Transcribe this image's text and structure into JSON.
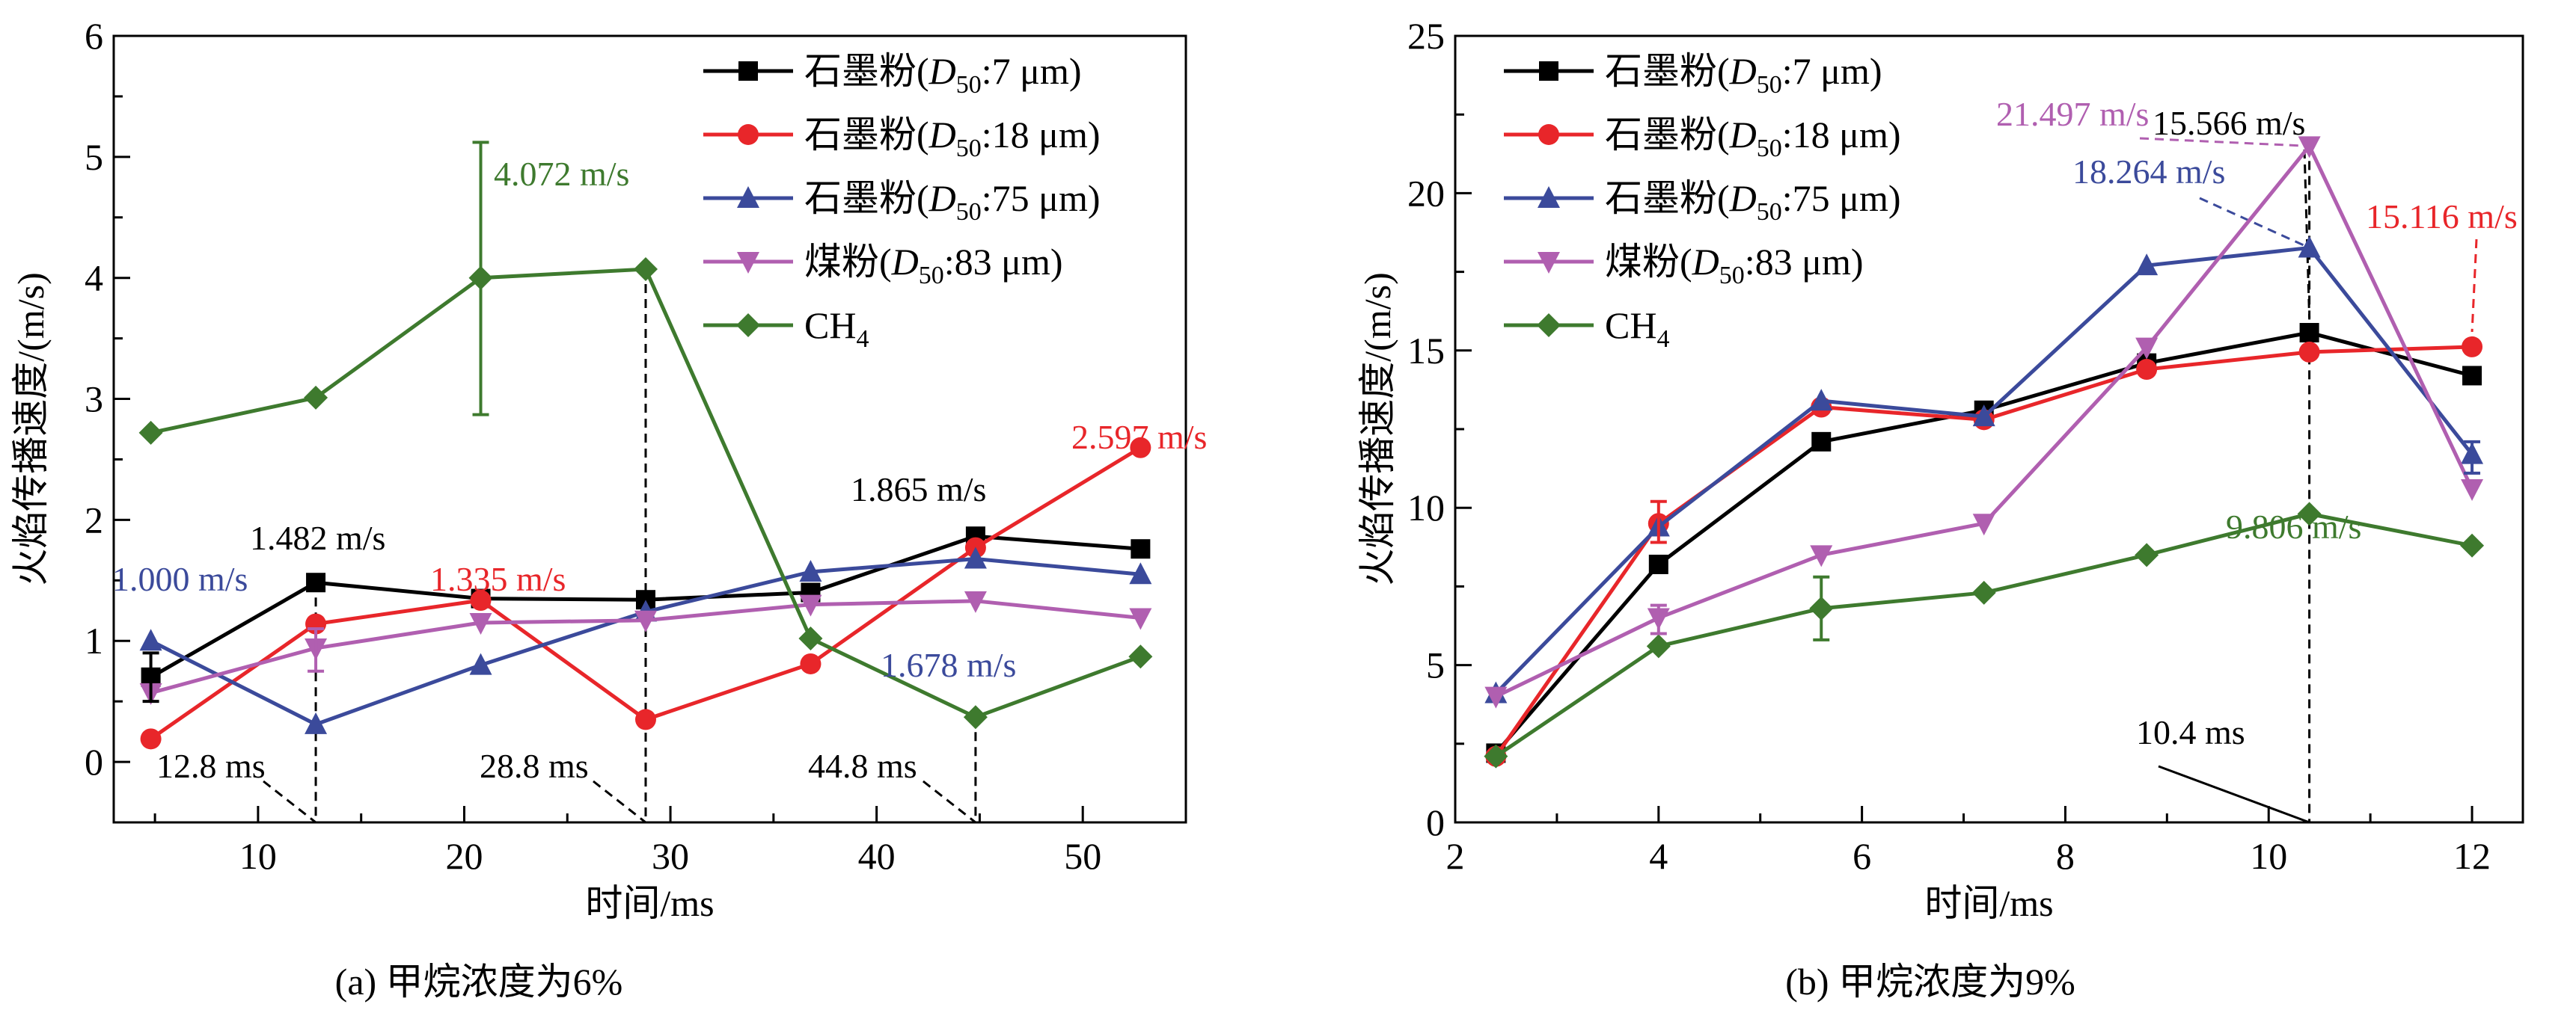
{
  "chart_data": [
    {
      "type": "line",
      "caption": "(a) 甲烷浓度为6%",
      "xlabel": "时间/ms",
      "ylabel": "火焰传播速度/(m/s)",
      "xlim": [
        3,
        55
      ],
      "ylim": [
        -0.5,
        6
      ],
      "xticks": [
        10,
        20,
        30,
        40,
        50
      ],
      "yticks": [
        0,
        1,
        2,
        3,
        4,
        5,
        6
      ],
      "grid": false,
      "legend_position": "top-right",
      "x": [
        4.8,
        12.8,
        20.8,
        28.8,
        36.8,
        44.8,
        52.8
      ],
      "series": [
        {
          "name": "石墨粉(D50:7 μm)",
          "color": "#000000",
          "marker": "square",
          "values": [
            0.7,
            1.482,
            1.35,
            1.34,
            1.4,
            1.865,
            1.76
          ]
        },
        {
          "name": "石墨粉(D50:18 μm)",
          "color": "#e8262a",
          "marker": "circle",
          "values": [
            0.19,
            1.14,
            1.335,
            0.35,
            0.81,
            1.77,
            2.597
          ]
        },
        {
          "name": "石墨粉(D50:75 μm)",
          "color": "#3b4a9b",
          "marker": "triangle-up",
          "values": [
            1.0,
            0.31,
            0.8,
            1.24,
            1.57,
            1.678,
            1.55
          ]
        },
        {
          "name": "煤粉(D50:83 μm)",
          "color": "#b05fb0",
          "marker": "triangle-down",
          "values": [
            0.57,
            0.94,
            1.15,
            1.17,
            1.3,
            1.33,
            1.19
          ]
        },
        {
          "name": "CH4",
          "color": "#3e7a2e",
          "marker": "diamond",
          "values": [
            2.72,
            3.01,
            4.0,
            4.072,
            1.02,
            0.37,
            0.87
          ]
        }
      ],
      "error_bars": [
        {
          "series": 4,
          "x": 20.8,
          "low": 2.87,
          "high": 5.12
        },
        {
          "series": 0,
          "x": 4.8,
          "low": 0.5,
          "high": 0.9
        },
        {
          "series": 3,
          "x": 12.8,
          "low": 0.75,
          "high": 1.1
        }
      ],
      "annotations": [
        {
          "text": "4.072 m/s",
          "color": "#3e7a2e"
        },
        {
          "text": "2.597 m/s",
          "color": "#e8262a"
        },
        {
          "text": "1.865 m/s",
          "color": "#000000"
        },
        {
          "text": "1.482 m/s",
          "color": "#000000"
        },
        {
          "text": "1.000 m/s",
          "color": "#3b4a9b"
        },
        {
          "text": "1.335 m/s",
          "color": "#e8262a"
        },
        {
          "text": "1.678 m/s",
          "color": "#3b4a9b"
        },
        {
          "text": "12.8 ms",
          "color": "#000000"
        },
        {
          "text": "28.8 ms",
          "color": "#000000"
        },
        {
          "text": "44.8 ms",
          "color": "#000000"
        }
      ]
    },
    {
      "type": "line",
      "caption": "(b) 甲烷浓度为9%",
      "xlabel": "时间/ms",
      "ylabel": "火焰传播速度/(m/s)",
      "xlim": [
        2,
        12.5
      ],
      "ylim": [
        0,
        25
      ],
      "xticks": [
        2,
        4,
        6,
        8,
        10,
        12
      ],
      "yticks": [
        0,
        5,
        10,
        15,
        20,
        25
      ],
      "grid": false,
      "legend_position": "top-left",
      "x": [
        2.4,
        4.0,
        5.6,
        7.2,
        8.8,
        10.4,
        12.0
      ],
      "series": [
        {
          "name": "石墨粉(D50:7 μm)",
          "color": "#000000",
          "marker": "square",
          "values": [
            2.2,
            8.2,
            12.1,
            13.1,
            14.6,
            15.566,
            14.2
          ]
        },
        {
          "name": "石墨粉(D50:18 μm)",
          "color": "#e8262a",
          "marker": "circle",
          "values": [
            2.1,
            9.5,
            13.2,
            12.8,
            14.4,
            14.95,
            15.116
          ]
        },
        {
          "name": "石墨粉(D50:75 μm)",
          "color": "#3b4a9b",
          "marker": "triangle-up",
          "values": [
            4.1,
            9.4,
            13.4,
            12.9,
            17.7,
            18.264,
            11.7
          ]
        },
        {
          "name": "煤粉(D50:83 μm)",
          "color": "#b05fb0",
          "marker": "triangle-down",
          "values": [
            4.0,
            6.5,
            8.5,
            9.5,
            15.1,
            21.497,
            10.6
          ]
        },
        {
          "name": "CH4",
          "color": "#3e7a2e",
          "marker": "diamond",
          "values": [
            2.1,
            5.6,
            6.8,
            7.3,
            8.5,
            9.806,
            8.8
          ]
        }
      ],
      "error_bars": [
        {
          "series": 1,
          "x": 4.0,
          "low": 8.9,
          "high": 10.2
        },
        {
          "series": 3,
          "x": 4.0,
          "low": 6.0,
          "high": 6.9
        },
        {
          "series": 4,
          "x": 5.6,
          "low": 5.8,
          "high": 7.8
        },
        {
          "series": 2,
          "x": 12.0,
          "low": 11.1,
          "high": 12.1
        }
      ],
      "annotations": [
        {
          "text": "21.497 m/s",
          "color": "#b05fb0"
        },
        {
          "text": "15.566 m/s",
          "color": "#000000"
        },
        {
          "text": "18.264 m/s",
          "color": "#3b4a9b"
        },
        {
          "text": "15.116 m/s",
          "color": "#e8262a"
        },
        {
          "text": "9.806 m/s",
          "color": "#3e7a2e"
        },
        {
          "text": "10.4 ms",
          "color": "#000000"
        }
      ]
    }
  ]
}
